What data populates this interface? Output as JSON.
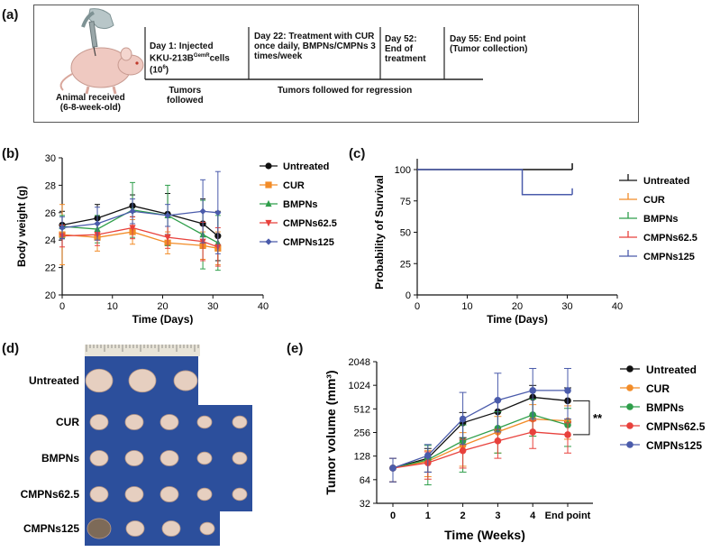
{
  "panel_a": {
    "label": "(a)",
    "animal_label": "Animal received\n(6-8-week-old)",
    "day1_prefix": "Day 1: Injected\nKKU-213B",
    "day1_superscript": "GemR",
    "day1_suffix": "cells\n(10",
    "day1_exp": "6",
    "day1_close": ")",
    "day22": "Day 22: Treatment with CUR\nonce daily, BMPNs/CMPNs 3\ntimes/week",
    "day52": "Day 52:\nEnd of\ntreatment",
    "day55": "Day 55: End point\n(Tumor collection)",
    "tumors_followed": "Tumors\nfollowed",
    "tumors_regression": "Tumors followed for regression"
  },
  "panel_labels": {
    "b": "(b)",
    "c": "(c)",
    "d": "(d)",
    "e": "(e)"
  },
  "colors": {
    "untreated": "#111111",
    "cur": "#f28c28",
    "bmpns": "#2e9e4a",
    "cmpns625": "#e8413c",
    "cmpns125": "#4a5bab"
  },
  "panel_d": {
    "rows": [
      "Untreated",
      "CUR",
      "BMPNs",
      "CMPNs62.5",
      "CMPNs125"
    ]
  },
  "chart_data": [
    {
      "id": "b",
      "type": "line",
      "title": "",
      "xlabel": "Time (Days)",
      "ylabel": "Body weight (g)",
      "xlim": [
        0,
        40
      ],
      "ylim": [
        20,
        30
      ],
      "xticks": [
        "0",
        "10",
        "20",
        "30",
        "40"
      ],
      "yticks": [
        "20",
        "22",
        "24",
        "26",
        "28",
        "30"
      ],
      "x": [
        0,
        7,
        14,
        21,
        28,
        31
      ],
      "legend_position": "right",
      "series": [
        {
          "name": "Untreated",
          "color": "#111111",
          "marker": "circle",
          "values": [
            25.1,
            25.6,
            26.5,
            25.9,
            25.2,
            24.3
          ],
          "err": [
            1.0,
            1.0,
            0.8,
            1.5,
            1.8,
            1.8
          ]
        },
        {
          "name": "CUR",
          "color": "#f28c28",
          "marker": "square",
          "values": [
            24.4,
            24.2,
            24.6,
            23.8,
            23.6,
            23.4
          ],
          "err": [
            2.2,
            1.0,
            0.9,
            0.8,
            1.0,
            1.2
          ]
        },
        {
          "name": "BMPNs",
          "color": "#2e9e4a",
          "marker": "triangle",
          "values": [
            25.0,
            24.8,
            26.2,
            25.8,
            24.4,
            23.8
          ],
          "err": [
            0.8,
            1.0,
            2.0,
            2.2,
            2.5,
            2.0
          ]
        },
        {
          "name": "CMPNs62.5",
          "color": "#e8413c",
          "marker": "triangle-down",
          "values": [
            24.3,
            24.4,
            24.9,
            24.2,
            23.9,
            23.5
          ],
          "err": [
            0.8,
            0.8,
            0.8,
            0.8,
            1.4,
            1.4
          ]
        },
        {
          "name": "CMPNs125",
          "color": "#4a5bab",
          "marker": "diamond",
          "values": [
            24.9,
            25.2,
            26.1,
            25.8,
            26.1,
            26.0
          ],
          "err": [
            0.8,
            1.2,
            0.9,
            0.8,
            2.3,
            3.0
          ]
        }
      ]
    },
    {
      "id": "c",
      "type": "line",
      "title": "",
      "xlabel": "Time (Days)",
      "ylabel": "Probability of Survival",
      "xlim": [
        0,
        40
      ],
      "ylim": [
        0,
        100
      ],
      "xticks": [
        "0",
        "10",
        "20",
        "30",
        "40"
      ],
      "yticks": [
        "0",
        "25",
        "50",
        "75",
        "100"
      ],
      "legend_position": "right",
      "series": [
        {
          "name": "Untreated",
          "color": "#111111",
          "steps": [
            [
              0,
              100
            ],
            [
              31,
              100
            ]
          ]
        },
        {
          "name": "CUR",
          "color": "#f28c28",
          "steps": []
        },
        {
          "name": "BMPNs",
          "color": "#2e9e4a",
          "steps": []
        },
        {
          "name": "CMPNs62.5",
          "color": "#e8413c",
          "steps": []
        },
        {
          "name": "CMPNs125",
          "color": "#4a5bab",
          "steps": [
            [
              0,
              100
            ],
            [
              21,
              100
            ],
            [
              21,
              80
            ],
            [
              31,
              80
            ]
          ]
        }
      ]
    },
    {
      "id": "e",
      "type": "line",
      "title": "",
      "xlabel": "Time (Weeks)",
      "ylabel": "Tumor volume (mm³)",
      "yscale": "log2",
      "ylim": [
        32,
        2048
      ],
      "categories": [
        "0",
        "1",
        "2",
        "3",
        "4",
        "End point"
      ],
      "yticks": [
        "32",
        "64",
        "128",
        "256",
        "512",
        "1024",
        "2048"
      ],
      "annotation": "**",
      "legend_position": "right",
      "series": [
        {
          "name": "Untreated",
          "color": "#111111",
          "values": [
            90,
            120,
            340,
            470,
            720,
            650
          ],
          "err_up": [
            30,
            40,
            120,
            200,
            300,
            300
          ],
          "err_dn": [
            30,
            40,
            120,
            200,
            300,
            300
          ]
        },
        {
          "name": "CUR",
          "color": "#f28c28",
          "values": [
            90,
            110,
            175,
            260,
            380,
            360
          ],
          "err_up": [
            30,
            40,
            80,
            150,
            200,
            200
          ],
          "err_dn": [
            30,
            40,
            80,
            120,
            150,
            150
          ]
        },
        {
          "name": "BMPNs",
          "color": "#2e9e4a",
          "values": [
            90,
            115,
            200,
            290,
            430,
            320
          ],
          "err_up": [
            30,
            60,
            120,
            180,
            250,
            200
          ],
          "err_dn": [
            30,
            60,
            120,
            150,
            200,
            150
          ]
        },
        {
          "name": "CMPNs62.5",
          "color": "#e8413c",
          "values": [
            90,
            105,
            150,
            200,
            260,
            240
          ],
          "err_up": [
            30,
            40,
            60,
            80,
            100,
            100
          ],
          "err_dn": [
            30,
            40,
            60,
            80,
            100,
            100
          ]
        },
        {
          "name": "CMPNs125",
          "color": "#4a5bab",
          "values": [
            90,
            130,
            380,
            660,
            880,
            880
          ],
          "err_up": [
            30,
            50,
            450,
            800,
            800,
            800
          ],
          "err_dn": [
            30,
            50,
            200,
            400,
            500,
            500
          ]
        }
      ]
    }
  ]
}
